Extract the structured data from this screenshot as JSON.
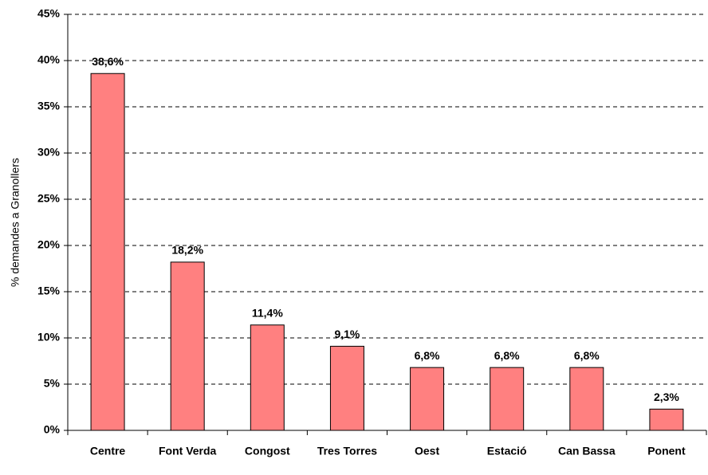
{
  "chart_data": {
    "type": "bar",
    "y_label": "% demandes a Granollers",
    "categories": [
      "Centre",
      "Font Verda",
      "Congost",
      "Tres Torres",
      "Oest",
      "Estació",
      "Can Bassa",
      "Ponent"
    ],
    "values": [
      38.6,
      18.2,
      11.4,
      9.1,
      6.8,
      6.8,
      6.8,
      2.3
    ],
    "value_labels": [
      "38,6%",
      "18,2%",
      "11,4%",
      "9,1%",
      "6,8%",
      "6,8%",
      "6,8%",
      "2,3%"
    ],
    "color": "#ff8080",
    "ylim": [
      0,
      45
    ],
    "yticks": [
      {
        "value": 0,
        "label": "0%"
      },
      {
        "value": 5,
        "label": "5%"
      },
      {
        "value": 10,
        "label": "10%"
      },
      {
        "value": 15,
        "label": "15%"
      },
      {
        "value": 20,
        "label": "20%"
      },
      {
        "value": 25,
        "label": "25%"
      },
      {
        "value": 30,
        "label": "30%"
      },
      {
        "value": 35,
        "label": "35%"
      },
      {
        "value": 40,
        "label": "40%"
      },
      {
        "value": 45,
        "label": "45%"
      }
    ],
    "grid": true
  }
}
